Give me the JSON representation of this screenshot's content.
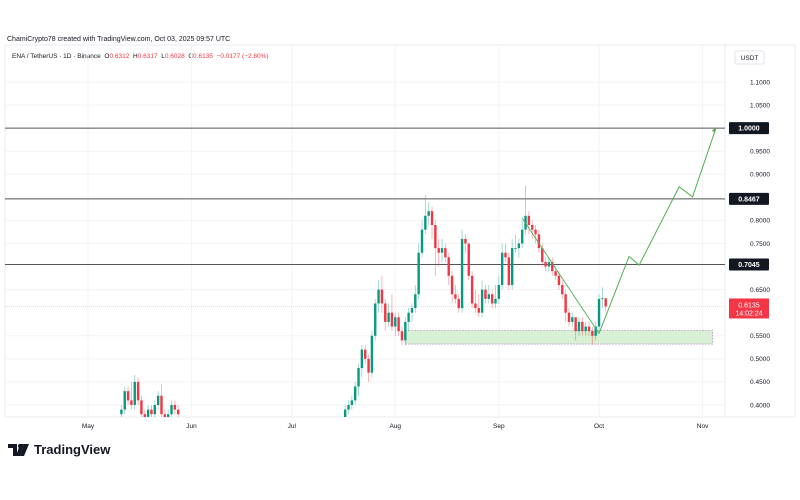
{
  "header": {
    "credit": "ChamiCrypto78 created with TradingView.com, Oct 03, 2025 09:57 UTC",
    "symbol": "ENA / TetherUS · 1D · Binance",
    "o_label": "O",
    "o": "0.6312",
    "h_label": "H",
    "h": "0.6317",
    "l_label": "L",
    "l": "0.6028",
    "c_label": "C",
    "c": "0.6135",
    "change": "−0.0177 (−2.80%)"
  },
  "logo": {
    "text": "TradingView",
    "icon": "tradingview-logo-icon"
  },
  "colors": {
    "up": "#089981",
    "down": "#f23645",
    "level": "#555555",
    "projection": "#4caf50",
    "zone": "#d8f0d4"
  },
  "chart_data": {
    "type": "candlestick",
    "currency": "USDT",
    "ylim": [
      0.374,
      1.13
    ],
    "yticks": [
      "1.1000",
      "1.0500",
      "0.9500",
      "0.9000",
      "0.8000",
      "0.7500",
      "0.6500",
      "0.5500",
      "0.5000",
      "0.4500",
      "0.4000"
    ],
    "xticks": [
      {
        "label": "May",
        "d": 0
      },
      {
        "label": "Jun",
        "d": 31
      },
      {
        "label": "Jul",
        "d": 61
      },
      {
        "label": "Aug",
        "d": 92
      },
      {
        "label": "Sep",
        "d": 123
      },
      {
        "label": "Oct",
        "d": 153
      },
      {
        "label": "Nov",
        "d": 184
      }
    ],
    "levels": [
      {
        "price": 1.0,
        "label": "1.0000"
      },
      {
        "price": 0.8467,
        "label": "0.8467"
      },
      {
        "price": 0.7045,
        "label": "0.7045"
      }
    ],
    "last_price": {
      "price": 0.6135,
      "label": "0.6135",
      "countdown": "14:02:24"
    },
    "zone": {
      "d_start": 95,
      "d_end": 187,
      "low": 0.532,
      "high": 0.562
    },
    "downtrend": [
      [
        130,
        0.805
      ],
      [
        153,
        0.555
      ]
    ],
    "projection": [
      [
        153,
        0.555
      ],
      [
        162,
        0.722
      ],
      [
        165,
        0.703
      ],
      [
        177,
        0.873
      ],
      [
        181,
        0.851
      ],
      [
        188,
        1.0
      ]
    ],
    "candles": [
      [
        10,
        0.38,
        0.4,
        0.37,
        0.39
      ],
      [
        11,
        0.39,
        0.44,
        0.38,
        0.43
      ],
      [
        12,
        0.43,
        0.44,
        0.4,
        0.41
      ],
      [
        13,
        0.41,
        0.45,
        0.39,
        0.4
      ],
      [
        14,
        0.4,
        0.465,
        0.39,
        0.45
      ],
      [
        15,
        0.45,
        0.46,
        0.4,
        0.41
      ],
      [
        16,
        0.41,
        0.42,
        0.37,
        0.38
      ],
      [
        17,
        0.38,
        0.39,
        0.36,
        0.37
      ],
      [
        18,
        0.37,
        0.4,
        0.36,
        0.39
      ],
      [
        19,
        0.39,
        0.4,
        0.37,
        0.38
      ],
      [
        20,
        0.38,
        0.41,
        0.37,
        0.4
      ],
      [
        21,
        0.4,
        0.43,
        0.39,
        0.42
      ],
      [
        22,
        0.42,
        0.445,
        0.37,
        0.38
      ],
      [
        23,
        0.38,
        0.39,
        0.36,
        0.37
      ],
      [
        24,
        0.37,
        0.39,
        0.36,
        0.38
      ],
      [
        25,
        0.38,
        0.41,
        0.37,
        0.4
      ],
      [
        26,
        0.4,
        0.41,
        0.38,
        0.39
      ],
      [
        27,
        0.39,
        0.4,
        0.37,
        0.38
      ],
      [
        77,
        0.37,
        0.4,
        0.36,
        0.39
      ],
      [
        78,
        0.39,
        0.41,
        0.38,
        0.4
      ],
      [
        79,
        0.4,
        0.42,
        0.39,
        0.41
      ],
      [
        80,
        0.41,
        0.45,
        0.4,
        0.44
      ],
      [
        81,
        0.44,
        0.49,
        0.42,
        0.48
      ],
      [
        82,
        0.48,
        0.53,
        0.46,
        0.52
      ],
      [
        83,
        0.52,
        0.53,
        0.49,
        0.5
      ],
      [
        84,
        0.5,
        0.51,
        0.45,
        0.47
      ],
      [
        85,
        0.47,
        0.56,
        0.46,
        0.55
      ],
      [
        86,
        0.55,
        0.63,
        0.54,
        0.62
      ],
      [
        87,
        0.62,
        0.67,
        0.6,
        0.65
      ],
      [
        88,
        0.65,
        0.68,
        0.6,
        0.62
      ],
      [
        89,
        0.62,
        0.63,
        0.56,
        0.58
      ],
      [
        90,
        0.58,
        0.62,
        0.57,
        0.6
      ],
      [
        91,
        0.6,
        0.64,
        0.56,
        0.57
      ],
      [
        92,
        0.57,
        0.6,
        0.55,
        0.59
      ],
      [
        93,
        0.59,
        0.6,
        0.55,
        0.56
      ],
      [
        94,
        0.56,
        0.57,
        0.53,
        0.54
      ],
      [
        95,
        0.54,
        0.59,
        0.53,
        0.58
      ],
      [
        96,
        0.58,
        0.61,
        0.56,
        0.6
      ],
      [
        97,
        0.6,
        0.62,
        0.58,
        0.61
      ],
      [
        98,
        0.61,
        0.66,
        0.6,
        0.64
      ],
      [
        99,
        0.64,
        0.75,
        0.63,
        0.73
      ],
      [
        100,
        0.73,
        0.8,
        0.72,
        0.78
      ],
      [
        101,
        0.78,
        0.855,
        0.77,
        0.81
      ],
      [
        102,
        0.81,
        0.84,
        0.79,
        0.82
      ],
      [
        103,
        0.82,
        0.83,
        0.76,
        0.79
      ],
      [
        104,
        0.79,
        0.8,
        0.68,
        0.74
      ],
      [
        105,
        0.74,
        0.76,
        0.7,
        0.73
      ],
      [
        106,
        0.73,
        0.76,
        0.71,
        0.74
      ],
      [
        107,
        0.74,
        0.75,
        0.71,
        0.72
      ],
      [
        108,
        0.72,
        0.73,
        0.66,
        0.68
      ],
      [
        109,
        0.68,
        0.69,
        0.62,
        0.64
      ],
      [
        110,
        0.64,
        0.66,
        0.62,
        0.63
      ],
      [
        111,
        0.63,
        0.64,
        0.6,
        0.61
      ],
      [
        112,
        0.61,
        0.78,
        0.6,
        0.76
      ],
      [
        113,
        0.76,
        0.77,
        0.73,
        0.75
      ],
      [
        114,
        0.75,
        0.75,
        0.67,
        0.68
      ],
      [
        115,
        0.68,
        0.69,
        0.61,
        0.62
      ],
      [
        116,
        0.62,
        0.65,
        0.6,
        0.61
      ],
      [
        117,
        0.61,
        0.64,
        0.59,
        0.6
      ],
      [
        118,
        0.6,
        0.67,
        0.59,
        0.65
      ],
      [
        119,
        0.65,
        0.66,
        0.62,
        0.63
      ],
      [
        120,
        0.63,
        0.66,
        0.62,
        0.64
      ],
      [
        121,
        0.64,
        0.65,
        0.61,
        0.62
      ],
      [
        122,
        0.62,
        0.66,
        0.61,
        0.63
      ],
      [
        123,
        0.63,
        0.68,
        0.62,
        0.66
      ],
      [
        124,
        0.66,
        0.75,
        0.65,
        0.73
      ],
      [
        125,
        0.73,
        0.75,
        0.71,
        0.72
      ],
      [
        126,
        0.72,
        0.73,
        0.65,
        0.66
      ],
      [
        127,
        0.66,
        0.76,
        0.65,
        0.74
      ],
      [
        128,
        0.74,
        0.77,
        0.73,
        0.74
      ],
      [
        129,
        0.74,
        0.76,
        0.72,
        0.75
      ],
      [
        130,
        0.75,
        0.8,
        0.74,
        0.78
      ],
      [
        131,
        0.78,
        0.875,
        0.77,
        0.81
      ],
      [
        132,
        0.81,
        0.82,
        0.77,
        0.79
      ],
      [
        133,
        0.79,
        0.8,
        0.76,
        0.78
      ],
      [
        134,
        0.78,
        0.79,
        0.75,
        0.77
      ],
      [
        135,
        0.77,
        0.78,
        0.73,
        0.74
      ],
      [
        136,
        0.74,
        0.75,
        0.7,
        0.71
      ],
      [
        137,
        0.71,
        0.72,
        0.69,
        0.7
      ],
      [
        138,
        0.7,
        0.72,
        0.69,
        0.71
      ],
      [
        139,
        0.71,
        0.72,
        0.68,
        0.69
      ],
      [
        140,
        0.69,
        0.7,
        0.67,
        0.68
      ],
      [
        141,
        0.68,
        0.69,
        0.65,
        0.66
      ],
      [
        142,
        0.66,
        0.67,
        0.63,
        0.64
      ],
      [
        143,
        0.64,
        0.65,
        0.58,
        0.6
      ],
      [
        144,
        0.6,
        0.61,
        0.57,
        0.58
      ],
      [
        145,
        0.58,
        0.6,
        0.57,
        0.59
      ],
      [
        146,
        0.59,
        0.59,
        0.54,
        0.56
      ],
      [
        147,
        0.56,
        0.59,
        0.55,
        0.58
      ],
      [
        148,
        0.58,
        0.59,
        0.55,
        0.56
      ],
      [
        149,
        0.56,
        0.58,
        0.55,
        0.57
      ],
      [
        150,
        0.57,
        0.58,
        0.55,
        0.56
      ],
      [
        151,
        0.56,
        0.57,
        0.53,
        0.55
      ],
      [
        152,
        0.55,
        0.58,
        0.54,
        0.57
      ],
      [
        153,
        0.57,
        0.64,
        0.56,
        0.63
      ],
      [
        154,
        0.63,
        0.655,
        0.61,
        0.6312
      ],
      [
        155,
        0.6312,
        0.6317,
        0.6028,
        0.6135
      ]
    ]
  }
}
